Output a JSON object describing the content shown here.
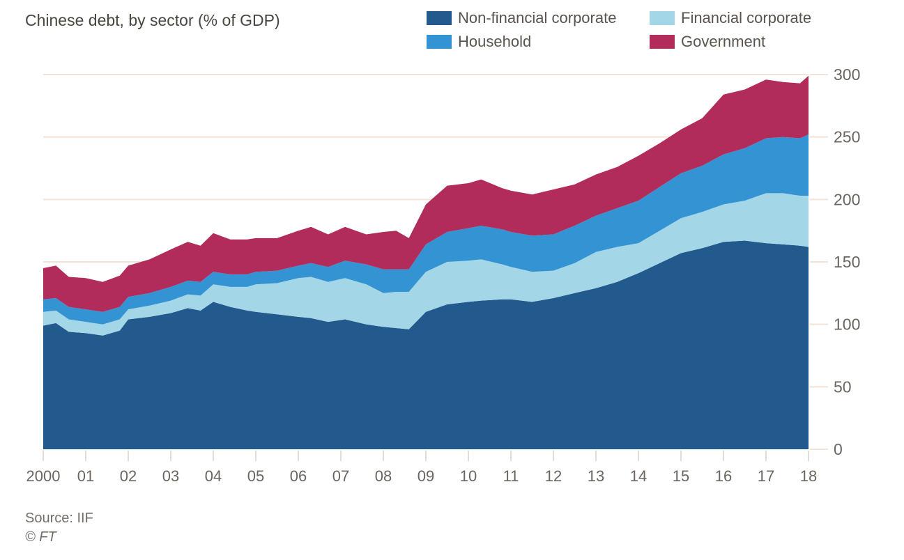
{
  "header": {
    "title": "Chinese debt, by sector (% of GDP)"
  },
  "legend": {
    "items": [
      {
        "label": "Non-financial corporate",
        "color": "#235a8e"
      },
      {
        "label": "Household",
        "color": "#3493d2"
      },
      {
        "label": "Financial corporate",
        "color": "#a3d7e8"
      },
      {
        "label": "Government",
        "color": "#b12b5b"
      }
    ]
  },
  "footer": {
    "source": "Source: IIF",
    "copyright": "© FT"
  },
  "chart_data": {
    "type": "area",
    "stacked": true,
    "title": "Chinese debt, by sector (% of GDP)",
    "xlabel": "",
    "ylabel": "% of GDP",
    "xlim": [
      2000,
      2018
    ],
    "ylim": [
      0,
      300
    ],
    "grid": "horizontal",
    "legend_position": "top-right",
    "yticks": [
      0,
      50,
      100,
      150,
      200,
      250,
      300
    ],
    "xticks": [
      2000,
      2001,
      2002,
      2003,
      2004,
      2005,
      2006,
      2007,
      2008,
      2009,
      2010,
      2011,
      2012,
      2013,
      2014,
      2015,
      2016,
      2017,
      2018
    ],
    "xtick_labels": [
      "2000",
      "01",
      "02",
      "03",
      "04",
      "05",
      "06",
      "07",
      "08",
      "09",
      "10",
      "11",
      "12",
      "13",
      "14",
      "15",
      "16",
      "17",
      "18"
    ],
    "x": [
      2000.0,
      2000.3,
      2000.6,
      2001.0,
      2001.4,
      2001.8,
      2002.0,
      2002.5,
      2003.0,
      2003.4,
      2003.7,
      2004.0,
      2004.4,
      2004.8,
      2005.0,
      2005.5,
      2006.0,
      2006.3,
      2006.7,
      2007.1,
      2007.6,
      2008.0,
      2008.3,
      2008.6,
      2009.0,
      2009.5,
      2010.0,
      2010.3,
      2010.8,
      2011.0,
      2011.5,
      2012.0,
      2012.5,
      2013.0,
      2013.5,
      2014.0,
      2014.5,
      2015.0,
      2015.5,
      2016.0,
      2016.5,
      2017.0,
      2017.4,
      2017.8,
      2018.0
    ],
    "series": [
      {
        "name": "Non-financial corporate",
        "color": "#235a8e",
        "values": [
          99,
          101,
          94,
          93,
          91,
          95,
          104,
          106,
          109,
          113,
          111,
          118,
          114,
          111,
          110,
          108,
          106,
          105,
          102,
          104,
          100,
          98,
          97,
          96,
          110,
          116,
          118,
          119,
          120,
          120,
          118,
          121,
          125,
          129,
          134,
          141,
          149,
          157,
          161,
          166,
          167,
          165,
          164,
          163,
          162
        ]
      },
      {
        "name": "Financial corporate",
        "color": "#a3d7e8",
        "values": [
          11,
          10,
          10,
          9,
          9,
          9,
          8,
          9,
          10,
          11,
          12,
          14,
          16,
          19,
          22,
          25,
          31,
          33,
          32,
          33,
          32,
          27,
          29,
          30,
          32,
          34,
          33,
          33,
          28,
          26,
          24,
          22,
          24,
          29,
          28,
          24,
          26,
          28,
          29,
          30,
          32,
          40,
          41,
          40,
          41
        ]
      },
      {
        "name": "Household",
        "color": "#3493d2",
        "values": [
          10,
          10,
          10,
          10,
          10,
          10,
          10,
          10,
          11,
          11,
          11,
          10,
          10,
          10,
          10,
          10,
          10,
          11,
          12,
          14,
          16,
          19,
          18,
          18,
          22,
          24,
          26,
          27,
          28,
          28,
          29,
          29,
          30,
          29,
          31,
          34,
          35,
          36,
          37,
          40,
          42,
          44,
          45,
          46,
          49
        ]
      },
      {
        "name": "Government",
        "color": "#b12b5b",
        "values": [
          25,
          26,
          24,
          25,
          24,
          25,
          25,
          27,
          30,
          31,
          29,
          31,
          28,
          28,
          27,
          26,
          28,
          29,
          26,
          27,
          24,
          30,
          31,
          25,
          32,
          37,
          36,
          37,
          33,
          33,
          33,
          36,
          33,
          33,
          33,
          36,
          35,
          35,
          38,
          48,
          47,
          47,
          44,
          44,
          47
        ]
      }
    ],
    "style": {
      "grid_color": "#f3e3d7",
      "x_tick_color": "#d8d0c7",
      "axis_label_color": "#6b655f"
    }
  }
}
